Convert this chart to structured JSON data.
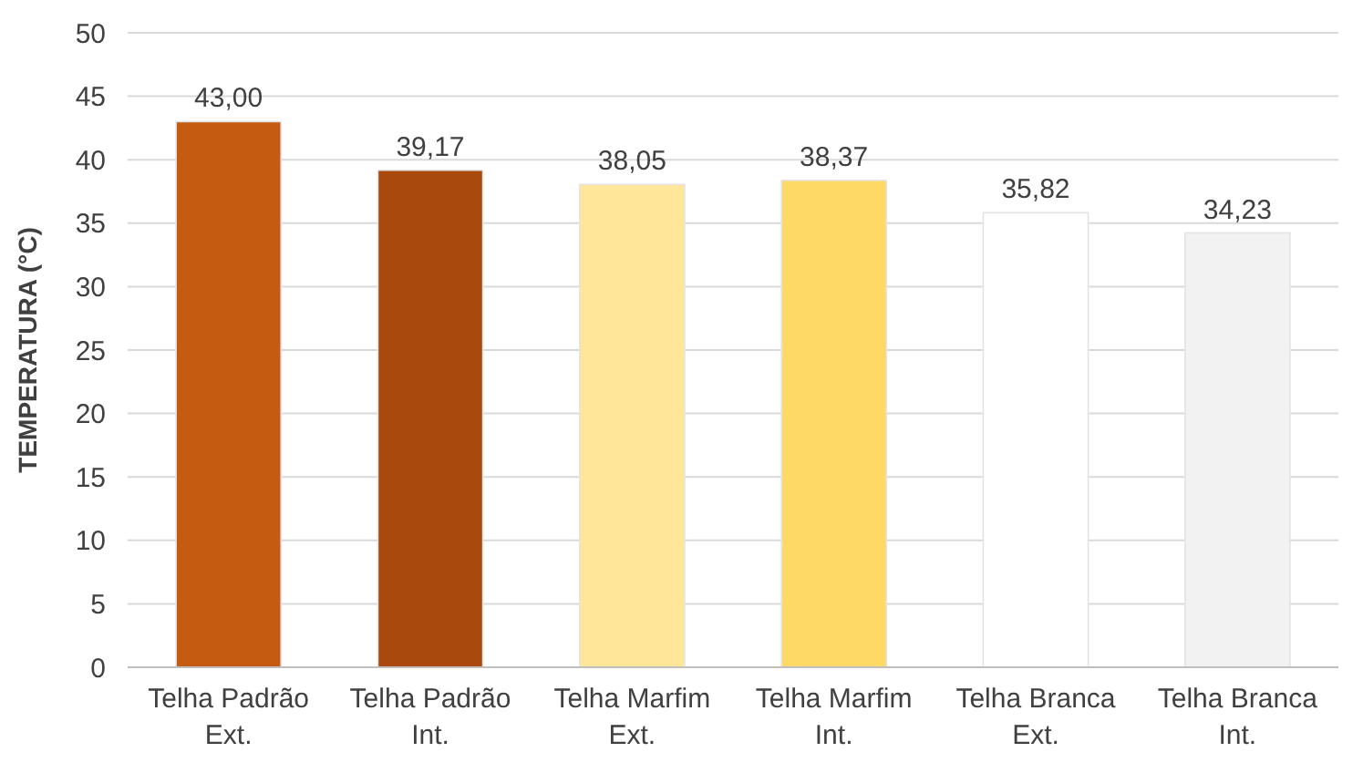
{
  "chart_data": {
    "type": "bar",
    "ylabel": "TEMPERATURA (°C)",
    "categories": [
      "Telha Padrão Ext.",
      "Telha Padrão Int.",
      "Telha Marfim Ext.",
      "Telha Marfim Int.",
      "Telha Branca Ext.",
      "Telha Branca Int."
    ],
    "values": [
      43.0,
      39.17,
      38.05,
      38.37,
      35.82,
      34.23
    ],
    "colors": [
      "#c55a11",
      "#a9490d",
      "#ffe699",
      "#ffd966",
      "#ffffff",
      "#f2f2f2"
    ],
    "value_labels": [
      "43,00",
      "39,17",
      "38,05",
      "38,37",
      "35,82",
      "34,23"
    ],
    "ylim": [
      0,
      50
    ],
    "yticks": [
      0,
      5,
      10,
      15,
      20,
      25,
      30,
      35,
      40,
      45,
      50
    ],
    "grid": "y"
  }
}
